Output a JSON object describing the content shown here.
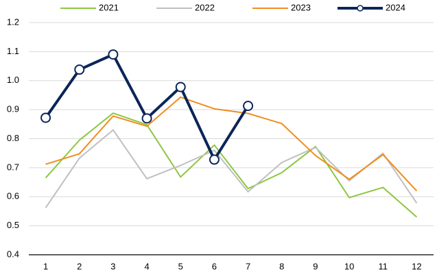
{
  "chart_data": {
    "type": "line",
    "categories": [
      "1",
      "2",
      "3",
      "4",
      "5",
      "6",
      "7",
      "8",
      "9",
      "10",
      "11",
      "12"
    ],
    "series": [
      {
        "name": "2021",
        "color": "#8dc63f",
        "width": 2,
        "markers": false,
        "values": [
          0.665,
          0.795,
          0.888,
          0.848,
          0.668,
          0.778,
          0.628,
          0.683,
          0.773,
          0.597,
          0.632,
          0.53
        ]
      },
      {
        "name": "2022",
        "color": "#bfbfbf",
        "width": 2,
        "markers": false,
        "values": [
          0.562,
          0.733,
          0.83,
          0.662,
          0.708,
          0.76,
          0.617,
          0.718,
          0.77,
          0.655,
          0.75,
          0.578
        ]
      },
      {
        "name": "2023",
        "color": "#f08c1e",
        "width": 2,
        "markers": false,
        "values": [
          0.712,
          0.748,
          0.878,
          0.843,
          0.943,
          0.903,
          0.887,
          0.852,
          0.742,
          0.66,
          0.745,
          0.62
        ]
      },
      {
        "name": "2024",
        "color": "#0b2559",
        "width": 4,
        "markers": true,
        "values": [
          0.872,
          1.038,
          1.09,
          0.87,
          0.978,
          0.728,
          0.913,
          null,
          null,
          null,
          null,
          null
        ]
      }
    ],
    "ylim": [
      0.4,
      1.2
    ],
    "yticks": [
      0.4,
      0.5,
      0.6,
      0.7,
      0.8,
      0.9,
      {
        "value": 1,
        "label": "1.0"
      },
      1.1,
      1.2
    ],
    "grid": true,
    "legend": "top"
  }
}
